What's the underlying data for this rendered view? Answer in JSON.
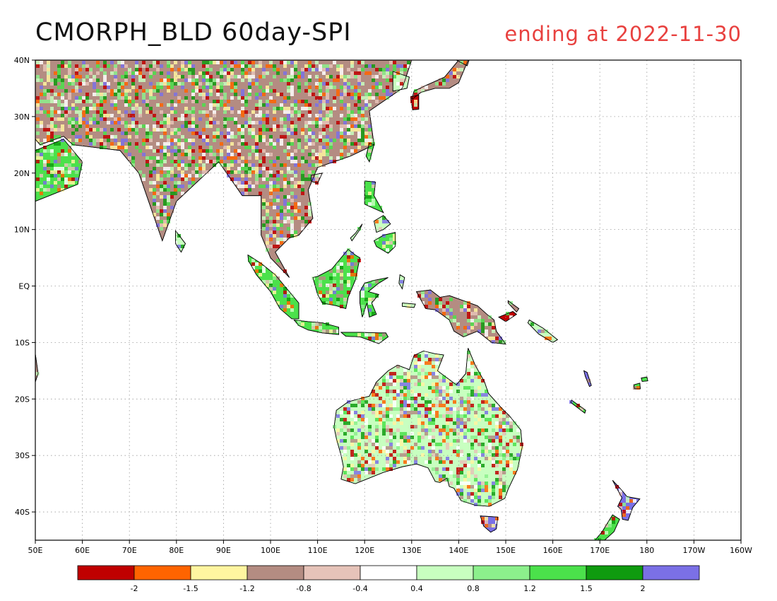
{
  "title": "CMORPH_BLD 60day-SPI",
  "subtitle": "ending at 2022-11-30",
  "subtitle_color": "#e8413f",
  "map": {
    "lon_range": [
      50,
      200
    ],
    "lat_range": [
      -45,
      40
    ],
    "grid": true,
    "lon_labels": [
      {
        "lon": 50,
        "text": "50E"
      },
      {
        "lon": 60,
        "text": "60E"
      },
      {
        "lon": 70,
        "text": "70E"
      },
      {
        "lon": 80,
        "text": "80E"
      },
      {
        "lon": 90,
        "text": "90E"
      },
      {
        "lon": 100,
        "text": "100E"
      },
      {
        "lon": 110,
        "text": "110E"
      },
      {
        "lon": 120,
        "text": "120E"
      },
      {
        "lon": 130,
        "text": "130E"
      },
      {
        "lon": 140,
        "text": "140E"
      },
      {
        "lon": 150,
        "text": "150E"
      },
      {
        "lon": 160,
        "text": "160E"
      },
      {
        "lon": 170,
        "text": "170E"
      },
      {
        "lon": 180,
        "text": "180"
      },
      {
        "lon": 190,
        "text": "170W"
      },
      {
        "lon": 200,
        "text": "160W"
      }
    ],
    "lat_labels": [
      {
        "lat": 40,
        "text": "40N"
      },
      {
        "lat": 30,
        "text": "30N"
      },
      {
        "lat": 20,
        "text": "20N"
      },
      {
        "lat": 10,
        "text": "10N"
      },
      {
        "lat": 0,
        "text": "EQ"
      },
      {
        "lat": -10,
        "text": "10S"
      },
      {
        "lat": -20,
        "text": "20S"
      },
      {
        "lat": -30,
        "text": "30S"
      },
      {
        "lat": -40,
        "text": "40S"
      }
    ]
  },
  "colorbar": {
    "colors": [
      "#c00000",
      "#ff6400",
      "#fff5a0",
      "#b48c82",
      "#e6c3b9",
      "#ffffff",
      "#c8ffc0",
      "#8cf08c",
      "#4be14b",
      "#0f9b0f",
      "#7b70e6"
    ],
    "labels": [
      "-2",
      "-1.5",
      "-1.2",
      "-0.8",
      "-0.4",
      "0.4",
      "0.8",
      "1.2",
      "1.5",
      "2"
    ]
  },
  "regions": [
    {
      "name": "asia-mainland",
      "base": "#b48c82",
      "points": [
        [
          50,
          40
        ],
        [
          130,
          40
        ],
        [
          128,
          35
        ],
        [
          121,
          31
        ],
        [
          122,
          25
        ],
        [
          117,
          23
        ],
        [
          110,
          21
        ],
        [
          108,
          17
        ],
        [
          109,
          12
        ],
        [
          106,
          9
        ],
        [
          104,
          8.5
        ],
        [
          101,
          6
        ],
        [
          104,
          1.5
        ],
        [
          100,
          5
        ],
        [
          98,
          9
        ],
        [
          98,
          16
        ],
        [
          94,
          16
        ],
        [
          89,
          22
        ],
        [
          80,
          15
        ],
        [
          77,
          8
        ],
        [
          72,
          20
        ],
        [
          68,
          24
        ],
        [
          58,
          25
        ],
        [
          56,
          26.5
        ],
        [
          51,
          25
        ],
        [
          50,
          26
        ]
      ]
    },
    {
      "name": "arabia-east",
      "base": "#4be14b",
      "points": [
        [
          50,
          24
        ],
        [
          56,
          26
        ],
        [
          60,
          22
        ],
        [
          59,
          18
        ],
        [
          53,
          16
        ],
        [
          50,
          15
        ]
      ]
    },
    {
      "name": "korea",
      "base": "#c8ffc0",
      "points": [
        [
          126,
          38
        ],
        [
          129.5,
          37
        ],
        [
          129,
          35
        ],
        [
          126,
          34.5
        ]
      ]
    },
    {
      "name": "japan-honshu",
      "base": "#b48c82",
      "points": [
        [
          130,
          33
        ],
        [
          132,
          34.3
        ],
        [
          135,
          35
        ],
        [
          138,
          35
        ],
        [
          140,
          36
        ],
        [
          141,
          38
        ],
        [
          142,
          40
        ],
        [
          140,
          40
        ],
        [
          137,
          37
        ],
        [
          133,
          35.5
        ],
        [
          130.5,
          34.5
        ]
      ]
    },
    {
      "name": "japan-kyushu",
      "base": "#c00000",
      "points": [
        [
          129.8,
          33.5
        ],
        [
          131.5,
          33.8
        ],
        [
          131.5,
          31.3
        ],
        [
          130.2,
          31.2
        ]
      ]
    },
    {
      "name": "japan-north",
      "base": "#b48c82",
      "points": [
        [
          139.5,
          40
        ],
        [
          142.2,
          40
        ],
        [
          141.8,
          39
        ]
      ]
    },
    {
      "name": "taiwan",
      "base": "#4be14b",
      "points": [
        [
          121,
          25.3
        ],
        [
          122,
          25
        ],
        [
          121,
          22
        ],
        [
          120.3,
          23
        ]
      ]
    },
    {
      "name": "hainan",
      "base": "#b48c82",
      "points": [
        [
          108.6,
          19.6
        ],
        [
          111,
          20
        ],
        [
          110,
          18.2
        ],
        [
          108.7,
          18.5
        ]
      ]
    },
    {
      "name": "sri-lanka",
      "base": "#c8ffc0",
      "points": [
        [
          79.8,
          9.8
        ],
        [
          81.9,
          7.5
        ],
        [
          81,
          6
        ],
        [
          79.8,
          7.5
        ]
      ]
    },
    {
      "name": "luzon",
      "base": "#4be14b",
      "points": [
        [
          120,
          18.6
        ],
        [
          122.3,
          18.4
        ],
        [
          122,
          16
        ],
        [
          124,
          13
        ],
        [
          121.8,
          13.8
        ],
        [
          120,
          14.5
        ]
      ]
    },
    {
      "name": "visayas",
      "base": "#c8ffc0",
      "points": [
        [
          122,
          11.5
        ],
        [
          124,
          12.5
        ],
        [
          125.5,
          11
        ],
        [
          124,
          10
        ],
        [
          122.5,
          9.5
        ]
      ]
    },
    {
      "name": "mindanao",
      "base": "#4be14b",
      "points": [
        [
          122,
          8
        ],
        [
          124,
          9
        ],
        [
          126.5,
          9.5
        ],
        [
          126.5,
          7
        ],
        [
          125,
          5.8
        ],
        [
          122.5,
          7
        ]
      ]
    },
    {
      "name": "palawan",
      "base": "#c8ffc0",
      "points": [
        [
          117,
          8.5
        ],
        [
          118,
          9.3
        ],
        [
          119.5,
          11
        ],
        [
          119,
          10
        ],
        [
          117.3,
          8
        ]
      ]
    },
    {
      "name": "sumatra",
      "base": "#4be14b",
      "points": [
        [
          95.2,
          5.5
        ],
        [
          98,
          4
        ],
        [
          101,
          2
        ],
        [
          104,
          -1
        ],
        [
          106,
          -3
        ],
        [
          106,
          -5.8
        ],
        [
          104.5,
          -5.8
        ],
        [
          102,
          -4
        ],
        [
          100,
          -1
        ],
        [
          97,
          2
        ],
        [
          95.3,
          4.5
        ]
      ]
    },
    {
      "name": "java",
      "base": "#4be14b",
      "points": [
        [
          105,
          -6
        ],
        [
          108,
          -6.3
        ],
        [
          111,
          -6.5
        ],
        [
          114.5,
          -7.3
        ],
        [
          114.5,
          -8.6
        ],
        [
          111,
          -8.3
        ],
        [
          108,
          -7.8
        ],
        [
          106,
          -7
        ]
      ]
    },
    {
      "name": "lesser-sunda",
      "base": "#4be14b",
      "points": [
        [
          115,
          -8.2
        ],
        [
          119,
          -8.2
        ],
        [
          123,
          -8.3
        ],
        [
          124.5,
          -8.3
        ],
        [
          125,
          -9
        ],
        [
          123,
          -10.2
        ],
        [
          119,
          -9
        ],
        [
          116,
          -8.9
        ]
      ]
    },
    {
      "name": "borneo",
      "base": "#4be14b",
      "points": [
        [
          109,
          1.5
        ],
        [
          110,
          1.7
        ],
        [
          113,
          3
        ],
        [
          115,
          5
        ],
        [
          116.5,
          6.5
        ],
        [
          118,
          5.5
        ],
        [
          119,
          5
        ],
        [
          118,
          1
        ],
        [
          117.5,
          0
        ],
        [
          116.5,
          -2
        ],
        [
          116,
          -4
        ],
        [
          114,
          -3.5
        ],
        [
          111,
          -3
        ],
        [
          110,
          -1.5
        ]
      ]
    },
    {
      "name": "sulawesi",
      "base": "#4be14b",
      "points": [
        [
          119,
          -1
        ],
        [
          120,
          0.5
        ],
        [
          122,
          1
        ],
        [
          125,
          1.5
        ],
        [
          123,
          0.5
        ],
        [
          120.8,
          -1
        ],
        [
          123,
          -1.5
        ],
        [
          121.5,
          -3
        ],
        [
          122.5,
          -5
        ],
        [
          121,
          -5.5
        ],
        [
          120.5,
          -3
        ],
        [
          119.5,
          -5.5
        ],
        [
          119,
          -3
        ]
      ]
    },
    {
      "name": "halmahera-maluku",
      "base": "#c8ffc0",
      "points": [
        [
          127.5,
          2
        ],
        [
          128.5,
          1.5
        ],
        [
          128,
          -0.5
        ],
        [
          127.3,
          0.5
        ]
      ]
    },
    {
      "name": "seram",
      "base": "#c8ffc0",
      "points": [
        [
          128,
          -3
        ],
        [
          130.8,
          -3.2
        ],
        [
          130.5,
          -3.8
        ],
        [
          128,
          -3.6
        ]
      ]
    },
    {
      "name": "new-guinea",
      "base": "#b48c82",
      "points": [
        [
          131,
          -1
        ],
        [
          134,
          -0.7
        ],
        [
          136,
          -2
        ],
        [
          138,
          -1.7
        ],
        [
          141,
          -2.6
        ],
        [
          144,
          -3.5
        ],
        [
          146,
          -5
        ],
        [
          147.5,
          -6
        ],
        [
          148,
          -8
        ],
        [
          150,
          -10.3
        ],
        [
          147,
          -10
        ],
        [
          144,
          -8
        ],
        [
          141,
          -9
        ],
        [
          139,
          -8
        ],
        [
          138,
          -6
        ],
        [
          135,
          -4.2
        ],
        [
          133,
          -4
        ],
        [
          132,
          -2.5
        ]
      ]
    },
    {
      "name": "new-britain",
      "base": "#c00000",
      "points": [
        [
          148.5,
          -5.5
        ],
        [
          151.5,
          -4.5
        ],
        [
          152.3,
          -5
        ],
        [
          150,
          -6.3
        ]
      ]
    },
    {
      "name": "new-ireland",
      "base": "#b48c82",
      "points": [
        [
          150.5,
          -2.6
        ],
        [
          152.8,
          -4
        ],
        [
          152.3,
          -4.6
        ],
        [
          150.5,
          -3
        ]
      ]
    },
    {
      "name": "solomon-is",
      "base": "#c8ffc0",
      "points": [
        [
          155,
          -6
        ],
        [
          158,
          -7.5
        ],
        [
          161,
          -9.5
        ],
        [
          160,
          -10
        ],
        [
          157,
          -8.5
        ],
        [
          154.7,
          -6.5
        ]
      ]
    },
    {
      "name": "australia",
      "base": "#c8ffc0",
      "points": [
        [
          114,
          -22
        ],
        [
          116.5,
          -20.5
        ],
        [
          121,
          -19.5
        ],
        [
          122.5,
          -17
        ],
        [
          125,
          -15
        ],
        [
          127,
          -14
        ],
        [
          129.5,
          -14.8
        ],
        [
          130.5,
          -12.3
        ],
        [
          132.5,
          -11.5
        ],
        [
          135,
          -12
        ],
        [
          136.8,
          -12.2
        ],
        [
          135.5,
          -15
        ],
        [
          139.5,
          -17.5
        ],
        [
          141.5,
          -15.5
        ],
        [
          142,
          -11
        ],
        [
          143.5,
          -14
        ],
        [
          145.5,
          -17
        ],
        [
          146.3,
          -19
        ],
        [
          149,
          -21.5
        ],
        [
          150.8,
          -23
        ],
        [
          153.2,
          -25.5
        ],
        [
          153.5,
          -28.5
        ],
        [
          152.5,
          -32.5
        ],
        [
          150.5,
          -36
        ],
        [
          149.8,
          -37.6
        ],
        [
          146.5,
          -39
        ],
        [
          143.5,
          -38.8
        ],
        [
          140.5,
          -38
        ],
        [
          139,
          -35.8
        ],
        [
          138,
          -35.5
        ],
        [
          137.5,
          -34
        ],
        [
          136,
          -34.8
        ],
        [
          135,
          -34.6
        ],
        [
          133.5,
          -32.2
        ],
        [
          131,
          -31.5
        ],
        [
          128,
          -32
        ],
        [
          124,
          -33
        ],
        [
          121,
          -34
        ],
        [
          118,
          -35
        ],
        [
          115,
          -34.2
        ],
        [
          115.5,
          -32
        ],
        [
          115,
          -30
        ],
        [
          114,
          -27
        ],
        [
          113.5,
          -25
        ],
        [
          114,
          -22
        ]
      ]
    },
    {
      "name": "tasmania",
      "base": "#7b70e6",
      "points": [
        [
          144.6,
          -40.7
        ],
        [
          148.3,
          -40.9
        ],
        [
          148,
          -43
        ],
        [
          146.8,
          -43.6
        ],
        [
          145.3,
          -42.5
        ]
      ]
    },
    {
      "name": "new-zealand-north",
      "base": "#7b70e6",
      "points": [
        [
          172.7,
          -34.4
        ],
        [
          174.5,
          -36
        ],
        [
          175.8,
          -37.3
        ],
        [
          178.5,
          -37.7
        ],
        [
          177,
          -39.2
        ],
        [
          176,
          -41.5
        ],
        [
          174.8,
          -41.3
        ],
        [
          174.5,
          -39.5
        ],
        [
          173.8,
          -39
        ],
        [
          174.7,
          -37.5
        ]
      ]
    },
    {
      "name": "new-zealand-south",
      "base": "#4be14b",
      "points": [
        [
          172.7,
          -40.5
        ],
        [
          174.2,
          -41.3
        ],
        [
          173,
          -43.5
        ],
        [
          171,
          -45
        ],
        [
          169,
          -45
        ],
        [
          170.5,
          -43.5
        ]
      ]
    },
    {
      "name": "new-caledonia",
      "base": "#4be14b",
      "points": [
        [
          164,
          -20.2
        ],
        [
          167,
          -22
        ],
        [
          166.8,
          -22.5
        ],
        [
          163.8,
          -20.6
        ]
      ]
    },
    {
      "name": "vanuatu",
      "base": "#7b70e6",
      "points": [
        [
          166.6,
          -15
        ],
        [
          167.3,
          -15.3
        ],
        [
          168.2,
          -17.6
        ],
        [
          167.8,
          -17.8
        ],
        [
          166.9,
          -16
        ]
      ]
    },
    {
      "name": "fiji",
      "base": "#4be14b",
      "points": [
        [
          177.2,
          -17.5
        ],
        [
          178.5,
          -17.2
        ],
        [
          178.6,
          -18.2
        ],
        [
          177.4,
          -18.2
        ]
      ]
    },
    {
      "name": "fiji-vanua-levu",
      "base": "#4be14b",
      "points": [
        [
          178.8,
          -16.3
        ],
        [
          180,
          -16.1
        ],
        [
          180.2,
          -16.8
        ],
        [
          179,
          -16.9
        ]
      ]
    },
    {
      "name": "madagascar-edge",
      "base": "#b48c82",
      "points": [
        [
          50,
          -12
        ],
        [
          50.6,
          -15.5
        ],
        [
          50,
          -17
        ]
      ]
    }
  ]
}
